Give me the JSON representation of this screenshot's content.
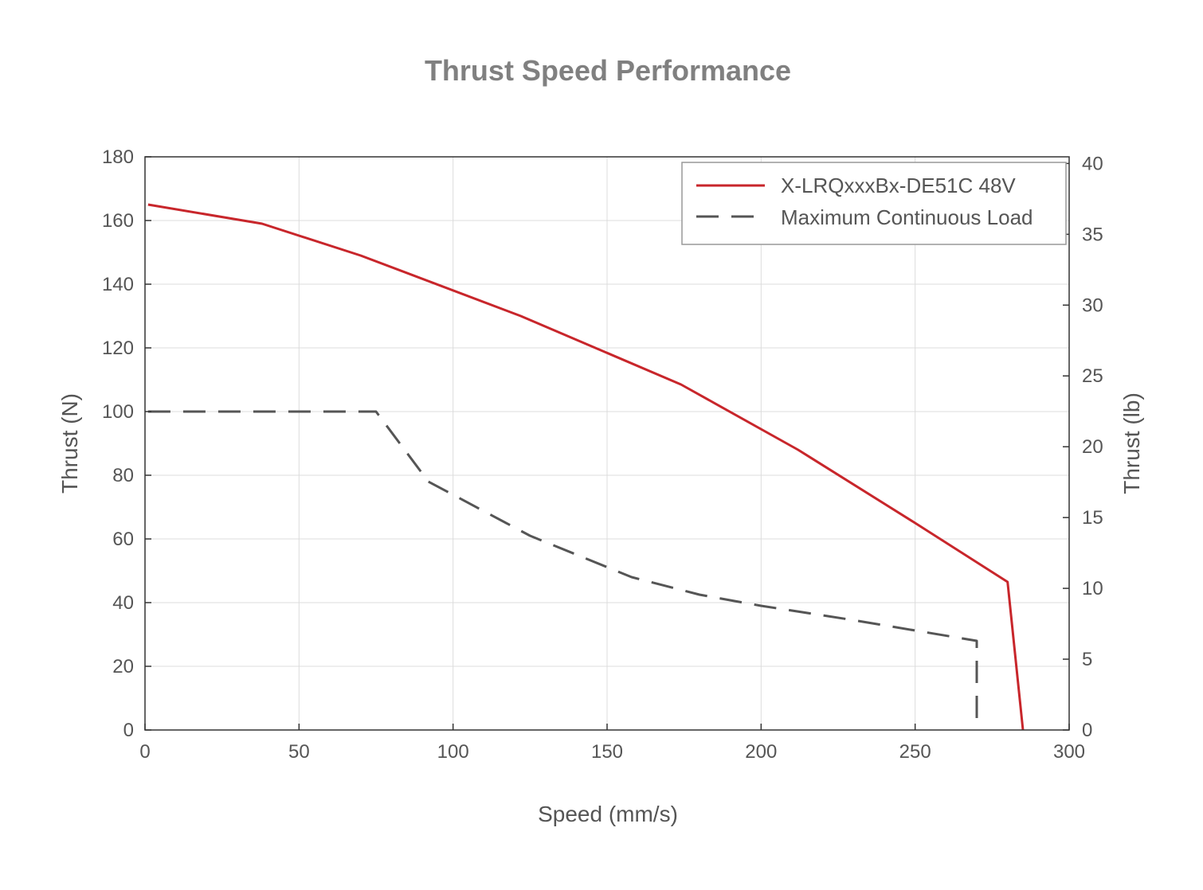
{
  "chart_data": {
    "type": "line",
    "title": "Thrust Speed Performance",
    "xlabel": "Speed (mm/s)",
    "ylabel": "Thrust (N)",
    "y2label": "Thrust (lb)",
    "xlim": [
      0,
      300
    ],
    "ylim": [
      0,
      180
    ],
    "y2lim": [
      0,
      40.47
    ],
    "xticks": [
      "0",
      "50",
      "100",
      "150",
      "200",
      "250",
      "300"
    ],
    "yticks": [
      "0",
      "20",
      "40",
      "60",
      "80",
      "100",
      "120",
      "140",
      "160",
      "180"
    ],
    "y2ticks": [
      "0",
      "5",
      "10",
      "15",
      "20",
      "25",
      "30",
      "35",
      "40"
    ],
    "grid": true,
    "legend_position": "top-right",
    "series": [
      {
        "name": "X-LRQxxxBx-DE51C 48V",
        "color": "#c8262b",
        "style": "solid",
        "x": [
          1,
          38,
          70,
          122,
          174,
          212,
          250,
          280,
          285
        ],
        "y": [
          165,
          159,
          149,
          130,
          108.5,
          88,
          65,
          46.5,
          0
        ]
      },
      {
        "name": "Maximum Continuous Load",
        "color": "#555555",
        "style": "dashed",
        "x": [
          1,
          75,
          92,
          125,
          158,
          180,
          200,
          230,
          270,
          270
        ],
        "y": [
          100,
          100,
          78,
          61,
          48,
          42.5,
          39,
          34.5,
          28,
          0
        ]
      }
    ]
  }
}
